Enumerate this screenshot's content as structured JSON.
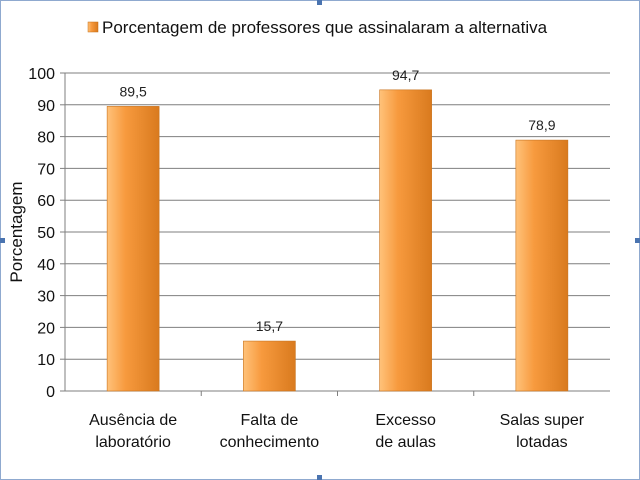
{
  "chart_data": {
    "type": "bar",
    "categories": [
      [
        "Ausência de",
        "laboratório"
      ],
      [
        "Falta de",
        "conhecimento"
      ],
      [
        "Excesso",
        "de aulas"
      ],
      [
        "Salas super",
        "lotadas"
      ]
    ],
    "series": [
      {
        "name": "Porcentagem de professores que assinalaram a alternativa",
        "values": [
          89.5,
          15.7,
          94.7,
          78.9
        ],
        "value_labels": [
          "89,5",
          "15,7",
          "94,7",
          "78,9"
        ],
        "color": "#f79a3e"
      }
    ],
    "ylabel": "Porcentagem",
    "xlabel": "",
    "ylim": [
      0,
      100
    ],
    "yticks": [
      0,
      10,
      20,
      30,
      40,
      50,
      60,
      70,
      80,
      90,
      100
    ],
    "grid": true,
    "legend_position": "top",
    "colors": {
      "bar_light": "#ffc27a",
      "bar_main": "#f79a3e",
      "bar_dark": "#d97a1e",
      "grid": "#7f7f7f",
      "frame": "#8fa9cf"
    }
  }
}
